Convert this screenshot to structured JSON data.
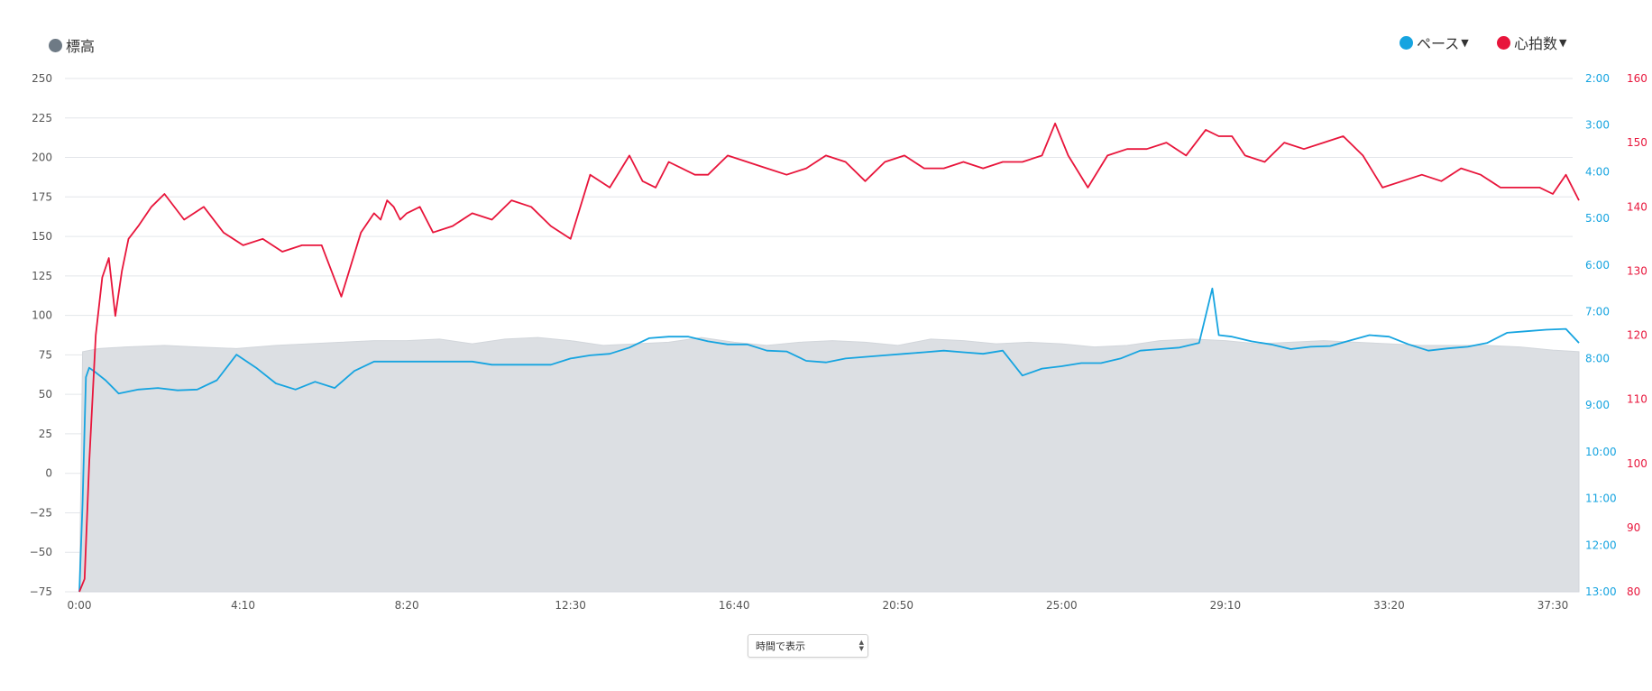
{
  "legend": {
    "elevation": {
      "label": "標高",
      "color": "#6e7a85"
    },
    "pace": {
      "label": "ペース",
      "color": "#16a4e0"
    },
    "heart_rate": {
      "label": "心拍数",
      "color": "#e8153b"
    }
  },
  "view_select": {
    "value": "時間で表示"
  },
  "chart_data": {
    "type": "line",
    "x_unit": "seconds",
    "x_ticks": [
      "0:00",
      "4:10",
      "8:20",
      "12:30",
      "16:40",
      "20:50",
      "25:00",
      "29:10",
      "33:20",
      "37:30"
    ],
    "xlim": [
      0,
      2290
    ],
    "grid": true,
    "axes": {
      "elevation": {
        "ylim": [
          -75,
          250
        ],
        "ticks": [
          "250",
          "225",
          "200",
          "175",
          "150",
          "125",
          "100",
          "75",
          "50",
          "25",
          "0",
          "−25",
          "−50",
          "−75"
        ]
      },
      "pace": {
        "ylim": [
          120,
          780
        ],
        "inverted": true,
        "ticks": [
          "2:00",
          "3:00",
          "4:00",
          "5:00",
          "6:00",
          "7:00",
          "8:00",
          "9:00",
          "10:00",
          "11:00",
          "12:00",
          "13:00"
        ]
      },
      "heart_rate": {
        "ylim": [
          80,
          160
        ],
        "ticks": [
          "160",
          "150",
          "140",
          "130",
          "120",
          "110",
          "100",
          "90",
          "80"
        ]
      }
    },
    "series": [
      {
        "name": "標高",
        "kind": "area",
        "axis": "elevation",
        "x": [
          0,
          5,
          30,
          70,
          130,
          180,
          240,
          300,
          350,
          400,
          450,
          500,
          550,
          600,
          650,
          700,
          750,
          800,
          850,
          900,
          950,
          1000,
          1050,
          1100,
          1150,
          1200,
          1250,
          1300,
          1350,
          1400,
          1450,
          1500,
          1550,
          1600,
          1650,
          1700,
          1750,
          1800,
          1850,
          1900,
          1950,
          2000,
          2050,
          2100,
          2150,
          2200,
          2250,
          2290
        ],
        "values": [
          -75,
          77,
          79,
          80,
          81,
          80,
          79,
          81,
          82,
          83,
          84,
          84,
          85,
          82,
          85,
          86,
          84,
          81,
          82,
          83,
          86,
          83,
          81,
          83,
          84,
          83,
          81,
          85,
          84,
          82,
          83,
          82,
          80,
          81,
          84,
          85,
          84,
          82,
          83,
          84,
          83,
          82,
          81,
          81,
          81,
          80,
          78,
          77
        ]
      },
      {
        "name": "ペース",
        "kind": "line",
        "axis": "pace",
        "x": [
          0,
          5,
          10,
          15,
          25,
          40,
          60,
          90,
          120,
          150,
          180,
          210,
          240,
          270,
          300,
          330,
          360,
          390,
          420,
          450,
          480,
          510,
          540,
          570,
          600,
          630,
          660,
          690,
          720,
          750,
          780,
          810,
          840,
          870,
          900,
          930,
          960,
          990,
          1020,
          1050,
          1080,
          1110,
          1140,
          1170,
          1200,
          1230,
          1260,
          1290,
          1320,
          1350,
          1380,
          1410,
          1440,
          1470,
          1500,
          1530,
          1560,
          1590,
          1620,
          1650,
          1680,
          1710,
          1730,
          1740,
          1760,
          1790,
          1820,
          1850,
          1880,
          1910,
          1940,
          1970,
          2000,
          2030,
          2060,
          2090,
          2120,
          2150,
          2180,
          2210,
          2240,
          2270,
          2290
        ],
        "values": [
          780,
          665,
          504,
          492,
          498,
          508,
          525,
          520,
          518,
          521,
          520,
          508,
          475,
          492,
          512,
          520,
          510,
          518,
          496,
          484,
          484,
          484,
          484,
          484,
          484,
          488,
          488,
          488,
          488,
          480,
          476,
          474,
          466,
          454,
          452,
          452,
          458,
          462,
          462,
          470,
          471,
          483,
          485,
          480,
          478,
          476,
          474,
          472,
          470,
          472,
          474,
          470,
          502,
          493,
          490,
          486,
          486,
          480,
          470,
          468,
          466,
          460,
          390,
          450,
          452,
          458,
          462,
          468,
          465,
          464,
          457,
          450,
          452,
          462,
          470,
          467,
          465,
          460,
          447,
          445,
          443,
          442,
          460
        ]
      },
      {
        "name": "心拍数",
        "kind": "line",
        "axis": "heart_rate",
        "x": [
          0,
          8,
          15,
          25,
          35,
          45,
          55,
          65,
          75,
          90,
          110,
          130,
          160,
          190,
          220,
          250,
          280,
          310,
          340,
          370,
          400,
          430,
          450,
          460,
          470,
          480,
          490,
          500,
          520,
          540,
          570,
          600,
          630,
          660,
          690,
          720,
          750,
          780,
          810,
          840,
          860,
          880,
          900,
          920,
          940,
          960,
          990,
          1020,
          1050,
          1080,
          1110,
          1140,
          1170,
          1200,
          1230,
          1260,
          1290,
          1320,
          1350,
          1380,
          1410,
          1440,
          1470,
          1490,
          1510,
          1540,
          1570,
          1600,
          1630,
          1660,
          1690,
          1720,
          1740,
          1760,
          1780,
          1810,
          1840,
          1870,
          1900,
          1930,
          1960,
          1990,
          2020,
          2050,
          2080,
          2110,
          2140,
          2170,
          2200,
          2230,
          2250,
          2270,
          2290
        ],
        "values": [
          80,
          82,
          100,
          120,
          129,
          132,
          123,
          130,
          135,
          137,
          140,
          142,
          138,
          140,
          136,
          134,
          135,
          133,
          134,
          134,
          126,
          136,
          139,
          138,
          141,
          140,
          138,
          139,
          140,
          136,
          137,
          139,
          138,
          141,
          140,
          137,
          135,
          145,
          143,
          148,
          144,
          143,
          147,
          146,
          145,
          145,
          148,
          147,
          146,
          145,
          146,
          148,
          147,
          144,
          147,
          148,
          146,
          146,
          147,
          146,
          147,
          147,
          148,
          153,
          148,
          143,
          148,
          149,
          149,
          150,
          148,
          152,
          151,
          151,
          148,
          147,
          150,
          149,
          150,
          151,
          148,
          143,
          144,
          145,
          144,
          146,
          145,
          143,
          143,
          143,
          142,
          145,
          141
        ]
      }
    ]
  }
}
